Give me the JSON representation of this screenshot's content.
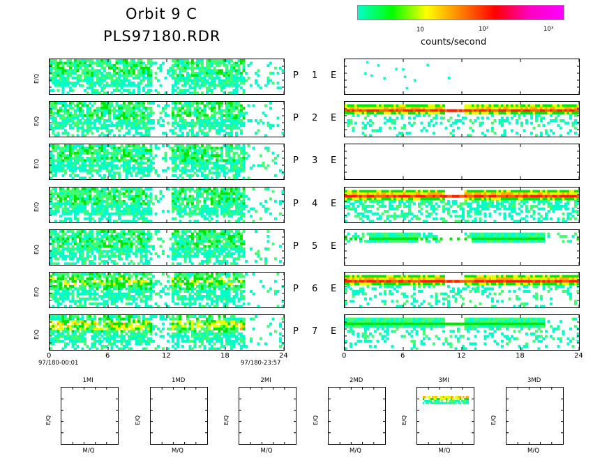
{
  "header": {
    "title_line1": "Orbit 9 C",
    "title_line2": "PLS97180.RDR"
  },
  "colorbar": {
    "tick_labels": [
      "10",
      "10²",
      "10³"
    ],
    "label": "counts/second",
    "colors": [
      "#00ffc8",
      "#00ff00",
      "#ffff00",
      "#ff8000",
      "#ff0000",
      "#ff00c0",
      "#ff00ff"
    ]
  },
  "rows": [
    {
      "p": "P",
      "n": "1",
      "e": "E"
    },
    {
      "p": "P",
      "n": "2",
      "e": "E"
    },
    {
      "p": "P",
      "n": "3",
      "e": "E"
    },
    {
      "p": "P",
      "n": "4",
      "e": "E"
    },
    {
      "p": "P",
      "n": "5",
      "e": "E"
    },
    {
      "p": "P",
      "n": "6",
      "e": "E"
    },
    {
      "p": "P",
      "n": "7",
      "e": "E"
    }
  ],
  "axes": {
    "ylabel": "E/Q",
    "mq_label": "M/Q",
    "left_start": "97/180-00:01",
    "left_end": "97/180-23:57"
  },
  "chart_data": {
    "type": "heatmap",
    "x_ticks": [
      "0",
      "6",
      "12",
      "18",
      "24"
    ],
    "xlim": [
      0,
      24
    ],
    "left_panels": [
      {
        "row": 1,
        "active_ranges": [
          [
            0,
            10.5
          ],
          [
            12.5,
            20
          ]
        ],
        "dominant": "cyan-green"
      },
      {
        "row": 2,
        "active_ranges": [
          [
            0,
            10.5
          ],
          [
            12.5,
            20
          ]
        ],
        "dominant": "cyan-green"
      },
      {
        "row": 3,
        "active_ranges": [
          [
            0,
            10.5
          ],
          [
            12.5,
            20
          ]
        ],
        "dominant": "cyan-green"
      },
      {
        "row": 4,
        "active_ranges": [
          [
            0,
            10.5
          ],
          [
            12.5,
            20
          ]
        ],
        "dominant": "cyan-green"
      },
      {
        "row": 5,
        "active_ranges": [
          [
            0,
            10.5
          ],
          [
            12.5,
            20
          ]
        ],
        "dominant": "cyan-green"
      },
      {
        "row": 6,
        "active_ranges": [
          [
            0,
            10.5
          ],
          [
            12.5,
            20
          ]
        ],
        "dominant": "cyan-green-yellow"
      },
      {
        "row": 7,
        "active_ranges": [
          [
            0,
            10.5
          ],
          [
            12.5,
            20
          ]
        ],
        "dominant": "yellow-red band"
      }
    ],
    "right_panels": [
      {
        "row": 1,
        "description": "sparse",
        "band": false
      },
      {
        "row": 2,
        "band": true,
        "band_color": "red-orange"
      },
      {
        "row": 3,
        "description": "empty",
        "band": false
      },
      {
        "row": 4,
        "band": true,
        "band_color": "red-orange"
      },
      {
        "row": 5,
        "band": true,
        "band_color": "green"
      },
      {
        "row": 6,
        "band": true,
        "band_color": "red-orange"
      },
      {
        "row": 7,
        "band": true,
        "band_color": "green"
      }
    ],
    "bottom_panels": [
      {
        "label": "1MI",
        "has_data": false
      },
      {
        "label": "1MD",
        "has_data": false
      },
      {
        "label": "2MI",
        "has_data": false
      },
      {
        "label": "2MD",
        "has_data": false
      },
      {
        "label": "3MI",
        "has_data": true
      },
      {
        "label": "3MD",
        "has_data": false
      }
    ]
  }
}
